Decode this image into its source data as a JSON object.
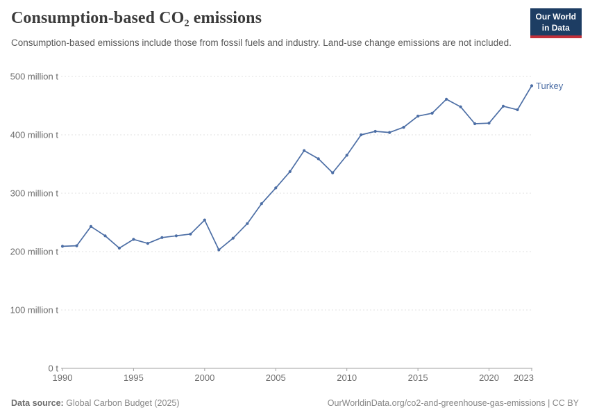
{
  "header": {
    "title": "Consumption-based CO₂ emissions",
    "subtitle": "Consumption-based emissions include those from fossil fuels and industry. Land-use change emissions are not included.",
    "logo": {
      "line1": "Our World",
      "line2": "in Data"
    }
  },
  "footer": {
    "source_label": "Data source:",
    "source_text": "Global Carbon Budget (2025)",
    "right_text": "OurWorldinData.org/co2-and-greenhouse-gas-emissions | CC BY"
  },
  "colors": {
    "series": "#4c6ea5",
    "grid": "#e0e0e0",
    "axis": "#a0a0a0",
    "tick_text": "#6e6e6e",
    "logo_bg": "#1d3d63",
    "logo_red": "#c2303a"
  },
  "chart_data": {
    "type": "line",
    "title": "Consumption-based CO₂ emissions",
    "xlabel": "",
    "ylabel": "",
    "grid": "horizontal-dashed",
    "legend_position": "end-of-line",
    "xlim": [
      1990,
      2023
    ],
    "ylim": [
      0,
      500
    ],
    "xticks": [
      1990,
      1995,
      2000,
      2005,
      2010,
      2015,
      2020,
      2023
    ],
    "yticks": [
      0,
      100,
      200,
      300,
      400,
      500
    ],
    "ytick_labels": [
      "0 t",
      "100 million t",
      "200 million t",
      "300 million t",
      "400 million t",
      "500 million t"
    ],
    "x": [
      1990,
      1991,
      1992,
      1993,
      1994,
      1995,
      1996,
      1997,
      1998,
      1999,
      2000,
      2001,
      2002,
      2003,
      2004,
      2005,
      2006,
      2007,
      2008,
      2009,
      2010,
      2011,
      2012,
      2013,
      2014,
      2015,
      2016,
      2017,
      2018,
      2019,
      2020,
      2021,
      2022,
      2023
    ],
    "series": [
      {
        "name": "Turkey",
        "color": "#4c6ea5",
        "values": [
          209,
          210,
          243,
          227,
          206,
          221,
          214,
          224,
          227,
          230,
          254,
          203,
          223,
          248,
          282,
          309,
          337,
          373,
          359,
          335,
          365,
          400,
          406,
          404,
          413,
          432,
          437,
          461,
          448,
          419,
          420,
          449,
          443,
          484
        ]
      }
    ],
    "unit": "million t"
  }
}
